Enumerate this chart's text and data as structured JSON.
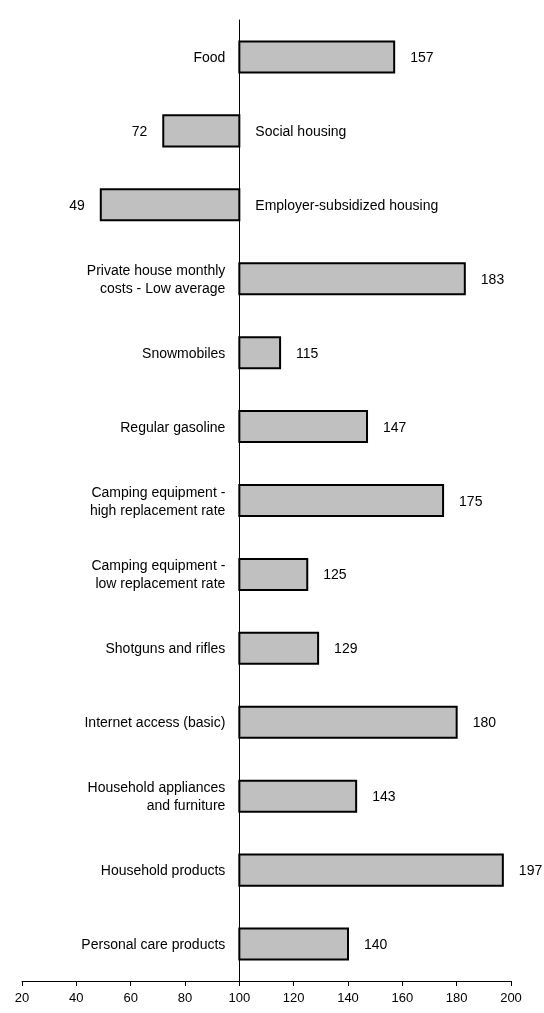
{
  "chart_data": {
    "type": "bar",
    "orientation": "horizontal",
    "categories": [
      "Food",
      "Social housing",
      "Employer-subsidized housing",
      "Private house monthly\ncosts - Low average",
      "Snowmobiles",
      "Regular gasoline",
      "Camping equipment -\nhigh replacement rate",
      "Camping equipment -\nlow replacement rate",
      "Shotguns and rifles",
      "Internet access (basic)",
      "Household appliances\nand furniture",
      "Household products",
      "Personal care products"
    ],
    "base": [
      100,
      100,
      100,
      100,
      100,
      100,
      100,
      100,
      100,
      100,
      100,
      100,
      100
    ],
    "values": [
      57,
      -28,
      -51,
      83,
      15,
      47,
      75,
      25,
      29,
      80,
      43,
      97,
      40
    ],
    "value_labels": [
      "157",
      "72",
      "49",
      "183",
      "115",
      "147",
      "175",
      "125",
      "129",
      "180",
      "143",
      "197",
      "140"
    ],
    "color": "#c0c0c0",
    "xlim": [
      20,
      200
    ],
    "xticks": [
      20,
      40,
      60,
      80,
      100,
      120,
      140,
      160,
      180,
      200
    ]
  }
}
